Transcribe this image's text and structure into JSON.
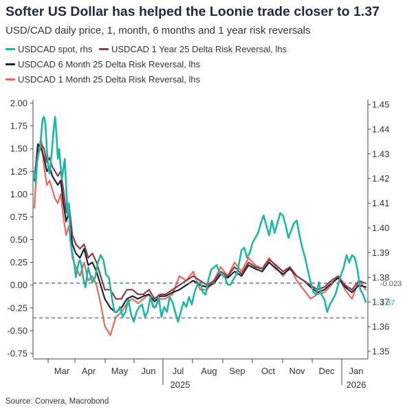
{
  "title": "Softer US Dollar has helped the Loonie trade closer to 1.37",
  "subtitle": "USD/CAD daily price, 1, month, 6 months and 1 year risk reversals",
  "source": "Source: Convera, Macrobond",
  "colors": {
    "spot": "#19b9a6",
    "rr1y": "#8b3a47",
    "rr6m": "#1b2433",
    "rr1m": "#e8695c",
    "refline": "#7a7a7a"
  },
  "chart_data": {
    "type": "line",
    "title": "Softer US Dollar has helped the Loonie trade closer to 1.37",
    "subtitle": "USD/CAD daily price, 1, month, 6 months and 1 year risk reversals",
    "x_ticks": [
      "Mar",
      "Apr",
      "May",
      "Jun",
      "Jul",
      "Aug",
      "Sep",
      "Oct",
      "Nov",
      "Dec",
      "Jan"
    ],
    "x_year_labels": [
      "2025",
      "2026"
    ],
    "left_axis": {
      "ticks": [
        "2.00",
        "1.75",
        "1.50",
        "1.25",
        "1.00",
        "0.75",
        "0.50",
        "0.25",
        "0.00",
        "-0.25",
        "-0.50",
        "-0.75"
      ],
      "ylim": [
        -0.75,
        2.0
      ]
    },
    "right_axis": {
      "ticks": [
        "1.45",
        "1.44",
        "1.43",
        "1.42",
        "1.41",
        "1.40",
        "1.39",
        "1.38",
        "1.37",
        "1.36",
        "1.35"
      ],
      "ylim": [
        1.35,
        1.45
      ]
    },
    "annotations": [
      "-0.023",
      "1.37"
    ],
    "reference_lines": [
      0.023,
      -0.36
    ],
    "grid": false,
    "legend_position": "top-left",
    "series": [
      {
        "name": "USDCAD spot, rhs",
        "axis": "right",
        "x": [
          0,
          2,
          4,
          6,
          8,
          10,
          12,
          14,
          16,
          18,
          20,
          22,
          25,
          28,
          30,
          32,
          34,
          36,
          38,
          40,
          42,
          44,
          46,
          48,
          50,
          52,
          55,
          58,
          60,
          62,
          64,
          66,
          68,
          70,
          72,
          74,
          76,
          78,
          80,
          84,
          88,
          92,
          96,
          100,
          104,
          108,
          112,
          116,
          120,
          124,
          128,
          132,
          136,
          140,
          144,
          148,
          152,
          156,
          160,
          164,
          168,
          172,
          176,
          180,
          184,
          188,
          192,
          196,
          200,
          204,
          208,
          212,
          216,
          220,
          224,
          228,
          232,
          236,
          240,
          244,
          248,
          252,
          256,
          260,
          264,
          268,
          272,
          276,
          280,
          284,
          288,
          292,
          296,
          300,
          304,
          308,
          312,
          316,
          320,
          324,
          328,
          332,
          336,
          340,
          344,
          348,
          352,
          356,
          360,
          364,
          368,
          372,
          376,
          380,
          384,
          388,
          392,
          396,
          400,
          404,
          408,
          412,
          416,
          420,
          424,
          428,
          432,
          436,
          440,
          444,
          448,
          452,
          456,
          460,
          464,
          468,
          472,
          476,
          480
        ],
        "values": [
          1.423,
          1.418,
          1.427,
          1.43,
          1.432,
          1.438,
          1.444,
          1.445,
          1.442,
          1.432,
          1.425,
          1.422,
          1.43,
          1.44,
          1.445,
          1.438,
          1.428,
          1.432,
          1.425,
          1.42,
          1.424,
          1.428,
          1.417,
          1.405,
          1.41,
          1.395,
          1.39,
          1.385,
          1.38,
          1.383,
          1.386,
          1.387,
          1.385,
          1.381,
          1.378,
          1.376,
          1.38,
          1.384,
          1.382,
          1.378,
          1.38,
          1.386,
          1.389,
          1.387,
          1.381,
          1.38,
          1.372,
          1.366,
          1.366,
          1.368,
          1.364,
          1.366,
          1.371,
          1.365,
          1.362,
          1.366,
          1.368,
          1.369,
          1.364,
          1.366,
          1.372,
          1.368,
          1.368,
          1.372,
          1.364,
          1.368,
          1.366,
          1.372,
          1.37,
          1.366,
          1.362,
          1.366,
          1.37,
          1.368,
          1.372,
          1.369,
          1.374,
          1.377,
          1.378,
          1.374,
          1.373,
          1.379,
          1.383,
          1.384,
          1.385,
          1.382,
          1.381,
          1.38,
          1.377,
          1.377,
          1.379,
          1.381,
          1.385,
          1.391,
          1.392,
          1.388,
          1.39,
          1.394,
          1.396,
          1.398,
          1.402,
          1.405,
          1.401,
          1.397,
          1.403,
          1.398,
          1.402,
          1.406,
          1.405,
          1.401,
          1.396,
          1.399,
          1.402,
          1.403,
          1.397,
          1.392,
          1.388,
          1.383,
          1.378,
          1.374,
          1.373,
          1.378,
          1.373,
          1.371,
          1.366,
          1.369,
          1.371,
          1.373,
          1.377,
          1.381,
          1.384,
          1.389,
          1.386,
          1.389,
          1.388,
          1.383,
          1.375,
          1.373,
          1.37
        ]
      },
      {
        "name": "USDCAD 1 Year 25 Delta Risk Reversal, lhs",
        "axis": "left",
        "x": [
          0,
          5,
          10,
          14,
          18,
          22,
          26,
          30,
          34,
          38,
          42,
          46,
          50,
          55,
          60,
          66,
          72,
          78,
          84,
          90,
          96,
          102,
          110,
          118,
          126,
          134,
          142,
          150,
          158,
          166,
          174,
          182,
          190,
          200,
          210,
          220,
          230,
          240,
          250,
          260,
          270,
          280,
          290,
          300,
          310,
          320,
          330,
          340,
          350,
          360,
          370,
          380,
          390,
          400,
          410,
          420,
          430,
          440,
          450,
          460,
          470,
          480
        ],
        "values": [
          1.2,
          1.45,
          1.55,
          1.5,
          1.35,
          1.4,
          1.3,
          1.25,
          1.2,
          1.25,
          1.05,
          0.8,
          0.9,
          0.55,
          0.45,
          0.4,
          0.45,
          0.3,
          0.35,
          0.25,
          0.1,
          -0.05,
          -0.05,
          -0.15,
          -0.15,
          -0.05,
          -0.05,
          -0.1,
          -0.1,
          -0.05,
          -0.15,
          -0.1,
          -0.1,
          -0.05,
          0.0,
          0.05,
          0.1,
          0.05,
          0.0,
          0.05,
          0.15,
          0.1,
          0.2,
          0.12,
          0.25,
          0.2,
          0.18,
          0.28,
          0.22,
          0.15,
          0.2,
          0.1,
          0.05,
          0.0,
          -0.05,
          -0.02,
          0.05,
          0.1,
          0.0,
          -0.05,
          0.05,
          0.02
        ]
      },
      {
        "name": "USDCAD 6 Month 25 Delta Risk Reversal, lhs",
        "axis": "left",
        "x": [
          0,
          5,
          10,
          14,
          18,
          22,
          26,
          30,
          34,
          38,
          42,
          46,
          50,
          55,
          60,
          66,
          72,
          78,
          84,
          90,
          96,
          102,
          110,
          118,
          126,
          134,
          142,
          150,
          158,
          166,
          174,
          182,
          190,
          200,
          210,
          220,
          230,
          240,
          250,
          260,
          270,
          280,
          290,
          300,
          310,
          320,
          330,
          340,
          350,
          360,
          370,
          380,
          390,
          400,
          410,
          420,
          430,
          440,
          450,
          460,
          470,
          480
        ],
        "values": [
          1.15,
          1.55,
          1.5,
          1.4,
          1.25,
          1.3,
          1.2,
          1.15,
          1.1,
          1.15,
          0.9,
          0.7,
          0.8,
          0.45,
          0.35,
          0.3,
          0.4,
          0.22,
          0.25,
          0.15,
          0.0,
          -0.15,
          -0.25,
          -0.3,
          -0.25,
          -0.15,
          -0.12,
          -0.15,
          -0.12,
          -0.1,
          -0.18,
          -0.12,
          -0.12,
          -0.08,
          -0.05,
          0.0,
          0.05,
          0.0,
          -0.02,
          0.02,
          0.12,
          0.08,
          0.15,
          0.1,
          0.22,
          0.18,
          0.15,
          0.25,
          0.18,
          0.12,
          0.18,
          0.1,
          0.05,
          -0.02,
          -0.08,
          -0.05,
          0.02,
          0.08,
          -0.02,
          -0.08,
          0.0,
          -0.02
        ]
      },
      {
        "name": "USDCAD 1 Month 25 Delta Risk Reversal, lhs",
        "axis": "left",
        "x": [
          0,
          5,
          10,
          14,
          18,
          22,
          26,
          30,
          34,
          38,
          42,
          46,
          50,
          55,
          60,
          66,
          72,
          78,
          84,
          90,
          96,
          102,
          110,
          118,
          126,
          134,
          142,
          150,
          158,
          166,
          174,
          182,
          190,
          200,
          210,
          220,
          230,
          240,
          250,
          260,
          270,
          280,
          290,
          300,
          310,
          320,
          330,
          340,
          350,
          360,
          370,
          380,
          390,
          400,
          410,
          420,
          430,
          440,
          450,
          460,
          470,
          480
        ],
        "values": [
          0.85,
          1.5,
          1.6,
          1.3,
          1.1,
          1.15,
          1.05,
          0.95,
          0.9,
          1.0,
          0.75,
          0.55,
          0.65,
          0.3,
          0.2,
          0.1,
          0.25,
          0.05,
          0.1,
          0.0,
          -0.2,
          -0.45,
          -0.55,
          -0.35,
          -0.3,
          -0.2,
          -0.15,
          -0.2,
          -0.15,
          -0.1,
          -0.25,
          -0.15,
          -0.15,
          -0.1,
          0.1,
          0.05,
          0.15,
          -0.05,
          -0.05,
          0.05,
          0.2,
          0.1,
          0.25,
          0.15,
          0.3,
          0.22,
          0.18,
          0.3,
          0.2,
          0.1,
          0.2,
          0.05,
          -0.05,
          -0.15,
          -0.1,
          -0.08,
          0.0,
          0.1,
          -0.05,
          -0.15,
          0.05,
          -0.05
        ]
      }
    ]
  }
}
